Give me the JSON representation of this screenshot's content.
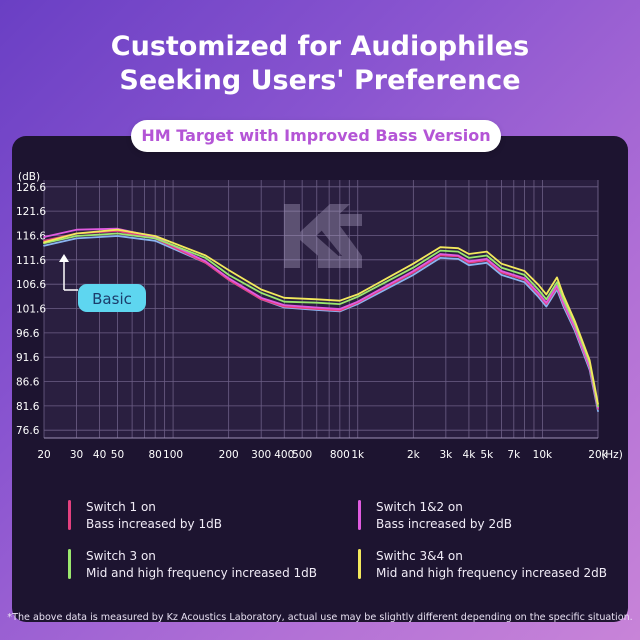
{
  "header": {
    "line1": "Customized for Audiophiles",
    "line2": "Seeking Users' Preference"
  },
  "badge": {
    "label": "HM Target with Improved Bass Version"
  },
  "logo": {
    "name": "kz-logo-icon"
  },
  "chart_data": {
    "type": "line",
    "ylabel": "(dB)",
    "xlabel": "(Hz)",
    "x_scale": "log",
    "xlim": [
      20,
      20000
    ],
    "ylim": [
      75,
      128
    ],
    "grid": true,
    "y_ticks": [
      126.6,
      121.6,
      116.6,
      111.6,
      106.6,
      101.6,
      96.6,
      91.6,
      86.6,
      81.6,
      76.6
    ],
    "x_ticks": [
      {
        "v": 20,
        "l": "20"
      },
      {
        "v": 30,
        "l": "30"
      },
      {
        "v": 40,
        "l": "40"
      },
      {
        "v": 50,
        "l": "50"
      },
      {
        "v": 80,
        "l": "80"
      },
      {
        "v": 100,
        "l": "100"
      },
      {
        "v": 200,
        "l": "200"
      },
      {
        "v": 300,
        "l": "300"
      },
      {
        "v": 400,
        "l": "400"
      },
      {
        "v": 500,
        "l": "500"
      },
      {
        "v": 800,
        "l": "800"
      },
      {
        "v": 1000,
        "l": "1k"
      },
      {
        "v": 2000,
        "l": "2k"
      },
      {
        "v": 3000,
        "l": "3k"
      },
      {
        "v": 4000,
        "l": "4k"
      },
      {
        "v": 5000,
        "l": "5k"
      },
      {
        "v": 7000,
        "l": "7k"
      },
      {
        "v": 10000,
        "l": "10k"
      },
      {
        "v": 20000,
        "l": "20k"
      }
    ],
    "annotation": {
      "label": "Basic",
      "x": 20,
      "y": 114.5
    },
    "series": [
      {
        "name": "Basic",
        "color": "#8ab4f0",
        "points": [
          [
            20,
            114.5
          ],
          [
            30,
            116.0
          ],
          [
            50,
            116.5
          ],
          [
            80,
            115.5
          ],
          [
            150,
            111.0
          ],
          [
            200,
            107.5
          ],
          [
            300,
            103.5
          ],
          [
            400,
            101.8
          ],
          [
            600,
            101.3
          ],
          [
            800,
            101.0
          ],
          [
            1000,
            102.5
          ],
          [
            2000,
            108.5
          ],
          [
            2800,
            112.0
          ],
          [
            3500,
            111.8
          ],
          [
            4000,
            110.5
          ],
          [
            5000,
            111.0
          ],
          [
            6000,
            108.5
          ],
          [
            8000,
            107.0
          ],
          [
            9500,
            104.0
          ],
          [
            10500,
            102.0
          ],
          [
            12000,
            105.5
          ],
          [
            13000,
            102.0
          ],
          [
            15000,
            97.0
          ],
          [
            18000,
            89.0
          ],
          [
            20000,
            80.5
          ]
        ]
      },
      {
        "name": "Switch 1 on",
        "color": "#e3407f",
        "points": [
          [
            20,
            115.5
          ],
          [
            30,
            117.0
          ],
          [
            50,
            117.5
          ],
          [
            80,
            116.0
          ],
          [
            150,
            111.0
          ],
          [
            200,
            107.5
          ],
          [
            300,
            103.5
          ],
          [
            400,
            102.0
          ],
          [
            600,
            101.5
          ],
          [
            800,
            101.2
          ],
          [
            1000,
            102.8
          ],
          [
            2000,
            109.0
          ],
          [
            2800,
            112.5
          ],
          [
            3500,
            112.3
          ],
          [
            4000,
            111.0
          ],
          [
            5000,
            111.5
          ],
          [
            6000,
            109.0
          ],
          [
            8000,
            107.5
          ],
          [
            9500,
            104.5
          ],
          [
            10500,
            102.5
          ],
          [
            12000,
            106.0
          ],
          [
            13000,
            102.5
          ],
          [
            15000,
            97.5
          ],
          [
            18000,
            89.5
          ],
          [
            20000,
            81.0
          ]
        ]
      },
      {
        "name": "Switch 1&2 on",
        "color": "#e05be0",
        "points": [
          [
            20,
            116.3
          ],
          [
            30,
            117.8
          ],
          [
            50,
            118.0
          ],
          [
            80,
            116.3
          ],
          [
            150,
            111.3
          ],
          [
            200,
            107.8
          ],
          [
            300,
            103.8
          ],
          [
            400,
            102.3
          ],
          [
            600,
            101.8
          ],
          [
            800,
            101.5
          ],
          [
            1000,
            103.0
          ],
          [
            2000,
            109.3
          ],
          [
            2800,
            112.8
          ],
          [
            3500,
            112.5
          ],
          [
            4000,
            111.3
          ],
          [
            5000,
            111.8
          ],
          [
            6000,
            109.3
          ],
          [
            8000,
            107.8
          ],
          [
            9500,
            104.8
          ],
          [
            10500,
            102.8
          ],
          [
            12000,
            106.3
          ],
          [
            13000,
            102.8
          ],
          [
            15000,
            97.8
          ],
          [
            18000,
            89.8
          ],
          [
            20000,
            81.2
          ]
        ]
      },
      {
        "name": "Switch 3 on",
        "color": "#9be86e",
        "points": [
          [
            20,
            115.0
          ],
          [
            30,
            116.5
          ],
          [
            50,
            117.0
          ],
          [
            80,
            116.0
          ],
          [
            150,
            112.0
          ],
          [
            200,
            108.5
          ],
          [
            300,
            104.8
          ],
          [
            400,
            103.0
          ],
          [
            600,
            102.8
          ],
          [
            800,
            102.5
          ],
          [
            1000,
            104.0
          ],
          [
            2000,
            110.0
          ],
          [
            2800,
            113.5
          ],
          [
            3500,
            113.3
          ],
          [
            4000,
            112.0
          ],
          [
            5000,
            112.5
          ],
          [
            6000,
            110.0
          ],
          [
            8000,
            108.5
          ],
          [
            9500,
            105.5
          ],
          [
            10500,
            103.5
          ],
          [
            12000,
            107.0
          ],
          [
            13000,
            103.5
          ],
          [
            15000,
            98.5
          ],
          [
            18000,
            90.5
          ],
          [
            20000,
            81.5
          ]
        ]
      },
      {
        "name": "Swithc 3&4 on",
        "color": "#f3e95c",
        "points": [
          [
            20,
            115.2
          ],
          [
            30,
            117.0
          ],
          [
            50,
            117.8
          ],
          [
            80,
            116.5
          ],
          [
            150,
            112.5
          ],
          [
            200,
            109.5
          ],
          [
            300,
            105.5
          ],
          [
            400,
            103.8
          ],
          [
            600,
            103.5
          ],
          [
            800,
            103.2
          ],
          [
            1000,
            104.5
          ],
          [
            2000,
            110.8
          ],
          [
            2800,
            114.2
          ],
          [
            3500,
            114.0
          ],
          [
            4000,
            112.8
          ],
          [
            5000,
            113.3
          ],
          [
            6000,
            110.8
          ],
          [
            8000,
            109.3
          ],
          [
            9500,
            106.5
          ],
          [
            10500,
            104.5
          ],
          [
            12000,
            108.0
          ],
          [
            13000,
            104.3
          ],
          [
            15000,
            99.0
          ],
          [
            18000,
            91.0
          ],
          [
            20000,
            82.0
          ]
        ]
      }
    ]
  },
  "legend": [
    {
      "title": "Switch 1 on",
      "desc": "Bass increased by 1dB",
      "color": "#e3407f"
    },
    {
      "title": "Switch 1&2 on",
      "desc": "Bass increased by 2dB",
      "color": "#e05be0"
    },
    {
      "title": "Switch 3 on",
      "desc": "Mid and high frequency increased 1dB",
      "color": "#9be86e"
    },
    {
      "title": "Swithc 3&4 on",
      "desc": "Mid and high frequency increased 2dB",
      "color": "#f3e95c"
    }
  ],
  "footnote": "*The above data is measured by Kz Acoustics Laboratory, actual use may be slightly different depending on the specific situation."
}
